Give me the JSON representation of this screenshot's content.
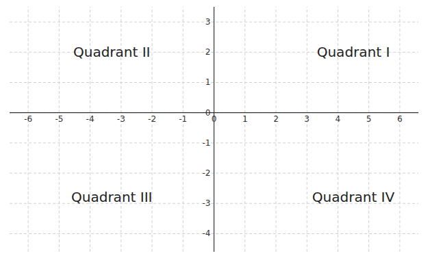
{
  "chart_data": {
    "type": "coordinate_plane",
    "xlim": [
      -6.6,
      6.6
    ],
    "ylim": [
      -4.6,
      3.5
    ],
    "xticks": [
      -6,
      -5,
      -4,
      -3,
      -2,
      -1,
      0,
      1,
      2,
      3,
      4,
      5,
      6
    ],
    "yticks": [
      -4,
      -3,
      -2,
      -1,
      0,
      1,
      2,
      3
    ],
    "grid": true,
    "annotations": [
      {
        "text": "Quadrant II",
        "x": -3.3,
        "y": 2.0
      },
      {
        "text": "Quadrant I",
        "x": 4.5,
        "y": 2.0
      },
      {
        "text": "Quadrant III",
        "x": -3.3,
        "y": -2.8
      },
      {
        "text": "Quadrant IV",
        "x": 4.5,
        "y": -2.8
      }
    ]
  }
}
